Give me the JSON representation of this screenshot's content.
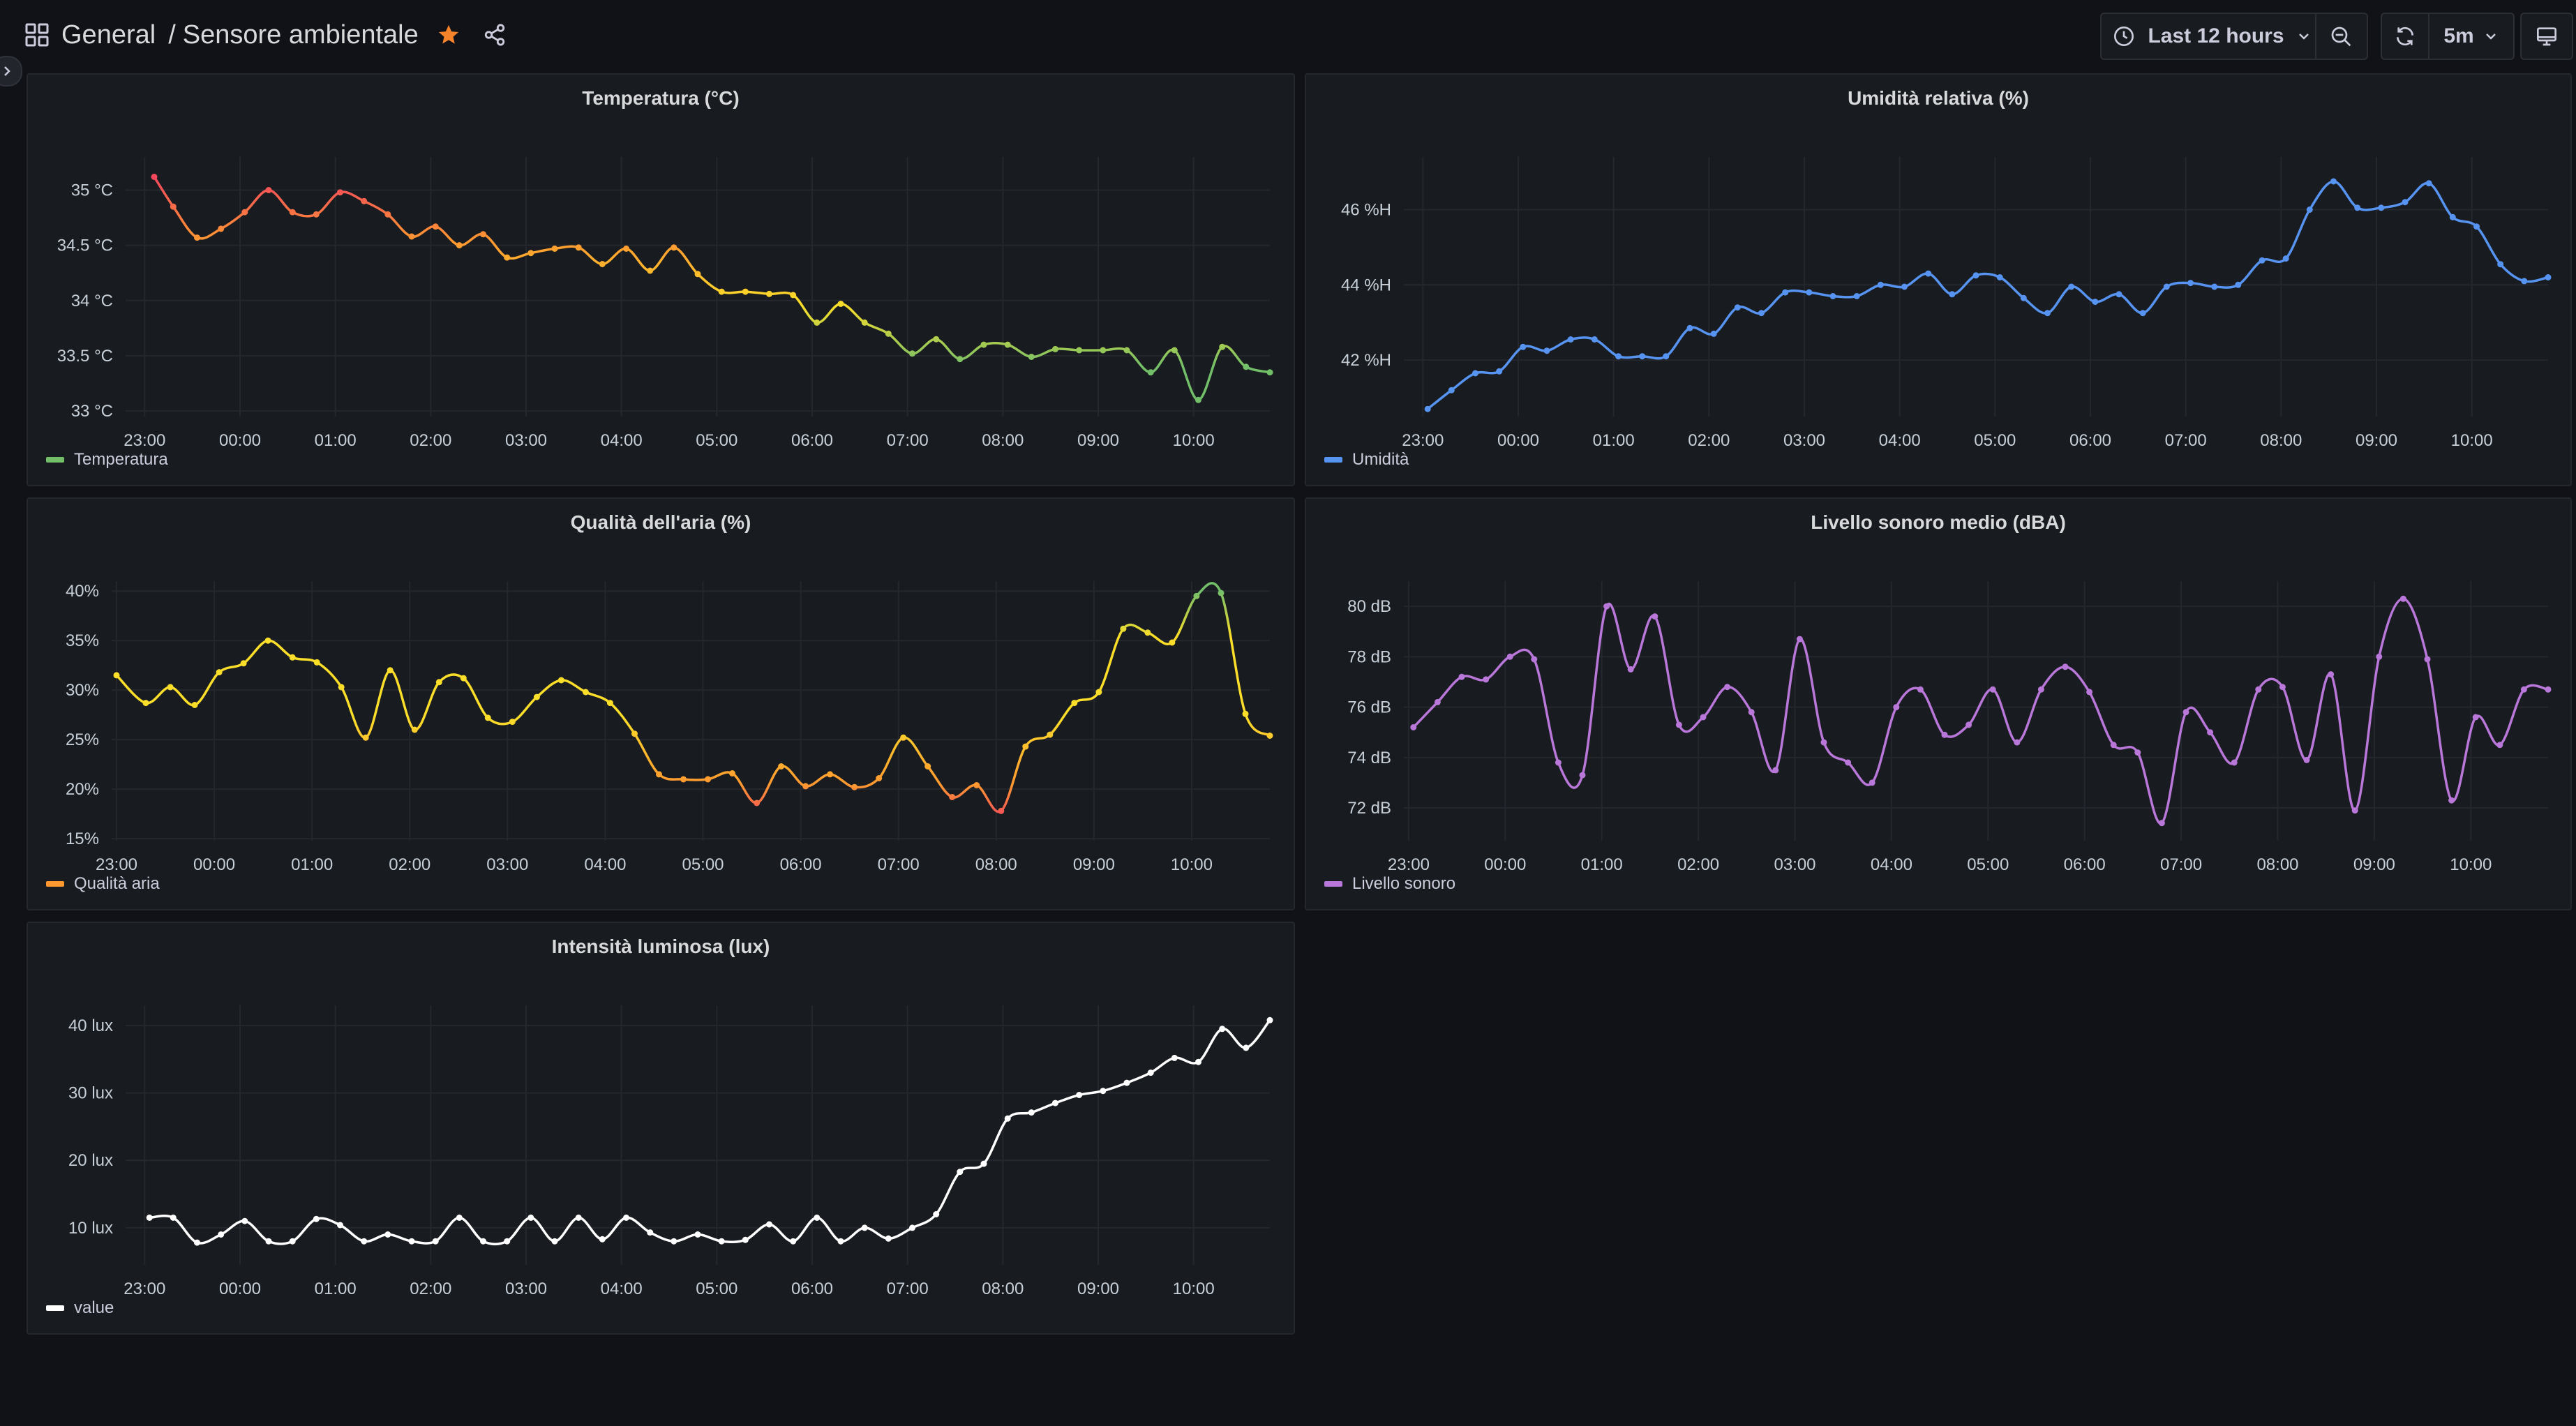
{
  "breadcrumb": {
    "folder": "General",
    "separator": "/",
    "dashboard": "Sensore ambientale"
  },
  "toolbar": {
    "time_range": "Last 12 hours",
    "refresh_interval": "5m"
  },
  "icons": {
    "dashboards": "grid-icon",
    "star": "star-icon",
    "share": "share-icon",
    "sidebar": "chevron-right-icon",
    "clock": "clock-icon",
    "zoom_out": "zoom-out-icon",
    "refresh": "refresh-icon",
    "kiosk": "monitor-icon",
    "dropdown": "chevron-down-icon"
  },
  "colors": {
    "background": "#111217",
    "panel": "#181b1f",
    "star": "#f5832b"
  },
  "panels": [
    {
      "title": "Temperatura (°C)",
      "legend": "Temperatura"
    },
    {
      "title": "Umidità relativa (%)",
      "legend": "Umidità"
    },
    {
      "title": "Qualità dell'aria (%)",
      "legend": "Qualità aria"
    },
    {
      "title": "Livello sonoro medio (dBA)",
      "legend": "Livello sonoro"
    },
    {
      "title": "Intensità luminosa (lux)",
      "legend": "value"
    }
  ],
  "chart_data": [
    {
      "type": "line",
      "title": "Temperatura (°C)",
      "x_ticks": [
        "23:00",
        "00:00",
        "01:00",
        "02:00",
        "03:00",
        "04:00",
        "05:00",
        "06:00",
        "07:00",
        "08:00",
        "09:00",
        "10:00"
      ],
      "y_ticks": [
        "33 °C",
        "33.5 °C",
        "34 °C",
        "34.5 °C",
        "35 °C"
      ],
      "ylim": [
        32.95,
        35.3
      ],
      "xlim": [
        -0.2,
        11.8
      ],
      "series": [
        {
          "name": "Temperatura",
          "color_scheme": [
            "#f2495c",
            "#ff9830",
            "#fade2a",
            "#73bf69"
          ],
          "x": [
            0.1,
            0.3,
            0.55,
            0.8,
            1.05,
            1.3,
            1.55,
            1.8,
            2.05,
            2.3,
            2.55,
            2.8,
            3.05,
            3.3,
            3.55,
            3.8,
            4.05,
            4.3,
            4.55,
            4.8,
            5.05,
            5.3,
            5.55,
            5.8,
            6.05,
            6.3,
            6.55,
            6.8,
            7.05,
            7.3,
            7.55,
            7.8,
            8.05,
            8.3,
            8.55,
            8.8,
            9.05,
            9.3,
            9.55,
            9.8,
            10.05,
            10.3,
            10.55,
            10.8,
            11.05,
            11.3,
            11.55,
            11.8
          ],
          "values": [
            35.12,
            34.85,
            34.57,
            34.65,
            34.8,
            35.0,
            34.8,
            34.78,
            34.98,
            34.9,
            34.78,
            34.58,
            34.67,
            34.5,
            34.6,
            34.39,
            34.43,
            34.47,
            34.48,
            34.33,
            34.47,
            34.27,
            34.48,
            34.24,
            34.08,
            34.08,
            34.06,
            34.05,
            33.8,
            33.97,
            33.8,
            33.7,
            33.52,
            33.65,
            33.47,
            33.6,
            33.6,
            33.49,
            33.56,
            33.55,
            33.55,
            33.55,
            33.35,
            33.55,
            33.1,
            33.58,
            33.4,
            33.35
          ]
        }
      ]
    },
    {
      "type": "line",
      "title": "Umidità relativa (%)",
      "x_ticks": [
        "23:00",
        "00:00",
        "01:00",
        "02:00",
        "03:00",
        "04:00",
        "05:00",
        "06:00",
        "07:00",
        "08:00",
        "09:00",
        "10:00"
      ],
      "y_ticks": [
        "42 %H",
        "44 %H",
        "46 %H"
      ],
      "ylim": [
        40.5,
        47.4
      ],
      "xlim": [
        -0.2,
        11.8
      ],
      "series": [
        {
          "name": "Umidità",
          "color": "#5794f2",
          "x": [
            0.05,
            0.3,
            0.55,
            0.8,
            1.05,
            1.3,
            1.55,
            1.8,
            2.05,
            2.3,
            2.55,
            2.8,
            3.05,
            3.3,
            3.55,
            3.8,
            4.05,
            4.3,
            4.55,
            4.8,
            5.05,
            5.3,
            5.55,
            5.8,
            6.05,
            6.3,
            6.55,
            6.8,
            7.05,
            7.3,
            7.55,
            7.8,
            8.05,
            8.3,
            8.55,
            8.8,
            9.05,
            9.3,
            9.55,
            9.8,
            10.05,
            10.3,
            10.55,
            10.8,
            11.05,
            11.3,
            11.55,
            11.8
          ],
          "values": [
            40.7,
            41.2,
            41.65,
            41.7,
            42.35,
            42.25,
            42.55,
            42.55,
            42.1,
            42.1,
            42.1,
            42.85,
            42.7,
            43.4,
            43.25,
            43.8,
            43.8,
            43.7,
            43.7,
            44.0,
            43.95,
            44.3,
            43.75,
            44.25,
            44.2,
            43.65,
            43.25,
            43.95,
            43.55,
            43.75,
            43.25,
            43.95,
            44.05,
            43.95,
            44.0,
            44.65,
            44.7,
            46.0,
            46.75,
            46.05,
            46.05,
            46.2,
            46.7,
            45.8,
            45.55,
            44.55,
            44.1,
            44.2
          ]
        }
      ]
    },
    {
      "type": "line",
      "title": "Qualità dell'aria (%)",
      "x_ticks": [
        "23:00",
        "00:00",
        "01:00",
        "02:00",
        "03:00",
        "04:00",
        "05:00",
        "06:00",
        "07:00",
        "08:00",
        "09:00",
        "10:00"
      ],
      "y_ticks": [
        "15%",
        "20%",
        "25%",
        "30%",
        "35%",
        "40%"
      ],
      "ylim": [
        14.8,
        41.0
      ],
      "xlim": [
        -0.05,
        11.8
      ],
      "series": [
        {
          "name": "Qualità aria",
          "color_scheme": [
            "#fade2a",
            "#ff9830",
            "#f2495c",
            "#73bf69"
          ],
          "x": [
            0.0,
            0.3,
            0.55,
            0.8,
            1.05,
            1.3,
            1.55,
            1.8,
            2.05,
            2.3,
            2.55,
            2.8,
            3.05,
            3.3,
            3.55,
            3.8,
            4.05,
            4.3,
            4.55,
            4.8,
            5.05,
            5.3,
            5.55,
            5.8,
            6.05,
            6.3,
            6.55,
            6.8,
            7.05,
            7.3,
            7.55,
            7.8,
            8.05,
            8.3,
            8.55,
            8.8,
            9.05,
            9.3,
            9.55,
            9.8,
            10.05,
            10.3,
            10.55,
            10.8,
            11.05,
            11.3,
            11.55,
            11.8
          ],
          "values": [
            31.5,
            28.7,
            30.3,
            28.5,
            31.8,
            32.7,
            35.0,
            33.3,
            32.8,
            30.3,
            25.2,
            32.0,
            26.0,
            30.8,
            31.2,
            27.2,
            26.8,
            29.3,
            31.0,
            29.8,
            28.7,
            25.6,
            21.5,
            21.0,
            21.0,
            21.6,
            18.6,
            22.3,
            20.3,
            21.5,
            20.2,
            21.1,
            25.2,
            22.3,
            19.2,
            20.4,
            17.8,
            24.3,
            25.5,
            28.7,
            29.8,
            36.2,
            35.8,
            34.8,
            39.5,
            39.8,
            27.6,
            25.4
          ]
        }
      ]
    },
    {
      "type": "line",
      "title": "Livello sonoro medio (dBA)",
      "x_ticks": [
        "23:00",
        "00:00",
        "01:00",
        "02:00",
        "03:00",
        "04:00",
        "05:00",
        "06:00",
        "07:00",
        "08:00",
        "09:00",
        "10:00"
      ],
      "y_ticks": [
        "72 dB",
        "74 dB",
        "76 dB",
        "78 dB",
        "80 dB"
      ],
      "ylim": [
        70.7,
        81.0
      ],
      "xlim": [
        -0.05,
        11.8
      ],
      "series": [
        {
          "name": "Livello sonoro",
          "color": "#b877d9",
          "x": [
            0.05,
            0.3,
            0.55,
            0.8,
            1.05,
            1.3,
            1.55,
            1.8,
            2.05,
            2.3,
            2.55,
            2.8,
            3.05,
            3.3,
            3.55,
            3.8,
            4.05,
            4.3,
            4.55,
            4.8,
            5.05,
            5.3,
            5.55,
            5.8,
            6.05,
            6.3,
            6.55,
            6.8,
            7.05,
            7.3,
            7.55,
            7.8,
            8.05,
            8.3,
            8.55,
            8.8,
            9.05,
            9.3,
            9.55,
            9.8,
            10.05,
            10.3,
            10.55,
            10.8,
            11.05,
            11.3,
            11.55,
            11.8
          ],
          "values": [
            75.2,
            76.2,
            77.2,
            77.1,
            78.0,
            77.9,
            73.8,
            73.3,
            80.0,
            77.5,
            79.6,
            75.3,
            75.6,
            76.8,
            75.8,
            73.5,
            78.7,
            74.6,
            73.8,
            73.0,
            76.0,
            76.7,
            74.9,
            75.3,
            76.7,
            74.6,
            76.7,
            77.6,
            76.6,
            74.5,
            74.2,
            71.4,
            75.8,
            75.0,
            73.8,
            76.7,
            76.8,
            73.9,
            77.3,
            71.9,
            78.0,
            80.3,
            77.9,
            72.3,
            75.6,
            74.5,
            76.7,
            76.7
          ]
        }
      ]
    },
    {
      "type": "line",
      "title": "Intensità luminosa (lux)",
      "x_ticks": [
        "23:00",
        "00:00",
        "01:00",
        "02:00",
        "03:00",
        "04:00",
        "05:00",
        "06:00",
        "07:00",
        "08:00",
        "09:00",
        "10:00"
      ],
      "y_ticks": [
        "10 lux",
        "20 lux",
        "30 lux",
        "40 lux"
      ],
      "ylim": [
        4.5,
        43.0
      ],
      "xlim": [
        -0.2,
        11.8
      ],
      "series": [
        {
          "name": "value",
          "color": "#ffffff",
          "x": [
            0.05,
            0.3,
            0.55,
            0.8,
            1.05,
            1.3,
            1.55,
            1.8,
            2.05,
            2.3,
            2.55,
            2.8,
            3.05,
            3.3,
            3.55,
            3.8,
            4.05,
            4.3,
            4.55,
            4.8,
            5.05,
            5.3,
            5.55,
            5.8,
            6.05,
            6.3,
            6.55,
            6.8,
            7.05,
            7.3,
            7.55,
            7.8,
            8.05,
            8.3,
            8.55,
            8.8,
            9.05,
            9.3,
            9.55,
            9.8,
            10.05,
            10.3,
            10.55,
            10.8,
            11.05,
            11.3,
            11.55,
            11.8
          ],
          "values": [
            11.5,
            11.5,
            7.8,
            9.0,
            11.0,
            8.0,
            8.0,
            11.3,
            10.4,
            8.0,
            9.0,
            8.0,
            8.0,
            11.5,
            8.0,
            8.0,
            11.5,
            8.0,
            11.5,
            8.3,
            11.5,
            9.3,
            8.0,
            9.0,
            8.0,
            8.2,
            10.5,
            8.0,
            11.5,
            8.0,
            10.0,
            8.4,
            10.0,
            12.0,
            18.3,
            19.5,
            26.2,
            27.1,
            28.5,
            29.7,
            30.3,
            31.5,
            33.0,
            35.2,
            34.6,
            39.5,
            36.7,
            40.8
          ]
        }
      ]
    }
  ]
}
